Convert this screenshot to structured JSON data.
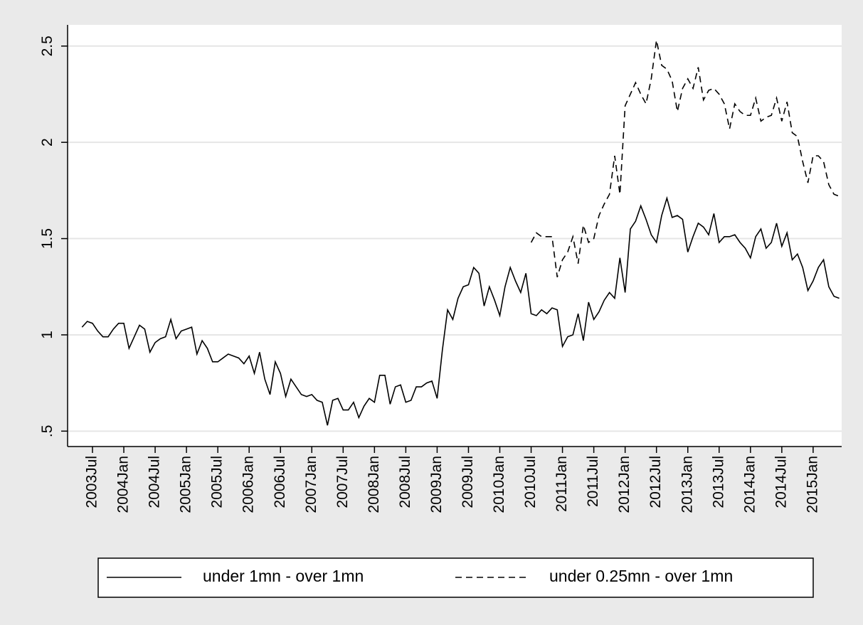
{
  "chart_data": {
    "type": "line",
    "categories": [
      null,
      null,
      "2003Jul",
      null,
      null,
      null,
      null,
      null,
      "2004Jan",
      null,
      null,
      null,
      null,
      null,
      "2004Jul",
      null,
      null,
      null,
      null,
      null,
      "2005Jan",
      null,
      null,
      null,
      null,
      null,
      "2005Jul",
      null,
      null,
      null,
      null,
      null,
      "2006Jan",
      null,
      null,
      null,
      null,
      null,
      "2006Jul",
      null,
      null,
      null,
      null,
      null,
      "2007Jan",
      null,
      null,
      null,
      null,
      null,
      "2007Jul",
      null,
      null,
      null,
      null,
      null,
      "2008Jan",
      null,
      null,
      null,
      null,
      null,
      "2008Jul",
      null,
      null,
      null,
      null,
      null,
      "2009Jan",
      null,
      null,
      null,
      null,
      null,
      "2009Jul",
      null,
      null,
      null,
      null,
      null,
      "2010Jan",
      null,
      null,
      null,
      null,
      null,
      "2010Jul",
      null,
      null,
      null,
      null,
      null,
      "2011Jan",
      null,
      null,
      null,
      null,
      null,
      "2011Jul",
      null,
      null,
      null,
      null,
      null,
      "2012Jan",
      null,
      null,
      null,
      null,
      null,
      "2012Jul",
      null,
      null,
      null,
      null,
      null,
      "2013Jan",
      null,
      null,
      null,
      null,
      null,
      "2013Jul",
      null,
      null,
      null,
      null,
      null,
      "2014Jan",
      null,
      null,
      null,
      null,
      null,
      "2014Jul",
      null,
      null,
      null,
      null,
      null,
      "2015Jan",
      null,
      null,
      null,
      null,
      null
    ],
    "series": [
      {
        "name": "under 1mn - over 1mn",
        "color": "#000000",
        "dash": "solid",
        "values": [
          1.04,
          1.07,
          1.06,
          1.02,
          0.99,
          0.99,
          1.03,
          1.06,
          1.06,
          0.93,
          0.99,
          1.05,
          1.03,
          0.91,
          0.96,
          0.98,
          0.99,
          1.08,
          0.98,
          1.02,
          1.03,
          1.04,
          0.9,
          0.97,
          0.93,
          0.86,
          0.86,
          0.88,
          0.9,
          0.89,
          0.88,
          0.85,
          0.89,
          0.8,
          0.91,
          0.77,
          0.69,
          0.86,
          0.8,
          0.68,
          0.77,
          0.73,
          0.69,
          0.68,
          0.69,
          0.66,
          0.65,
          0.53,
          0.66,
          0.67,
          0.61,
          0.61,
          0.65,
          0.57,
          0.63,
          0.67,
          0.65,
          0.79,
          0.79,
          0.64,
          0.73,
          0.74,
          0.65,
          0.66,
          0.73,
          0.73,
          0.75,
          0.76,
          0.67,
          0.92,
          1.13,
          1.08,
          1.19,
          1.25,
          1.26,
          1.35,
          1.32,
          1.15,
          1.25,
          1.18,
          1.1,
          1.25,
          1.35,
          1.28,
          1.22,
          1.32,
          1.11,
          1.1,
          1.13,
          1.11,
          1.14,
          1.13,
          0.94,
          0.99,
          1.0,
          1.11,
          0.97,
          1.17,
          1.08,
          1.12,
          1.18,
          1.22,
          1.19,
          1.4,
          1.22,
          1.55,
          1.59,
          1.67,
          1.6,
          1.52,
          1.48,
          1.62,
          1.71,
          1.61,
          1.62,
          1.6,
          1.43,
          1.51,
          1.58,
          1.56,
          1.52,
          1.63,
          1.48,
          1.51,
          1.51,
          1.52,
          1.48,
          1.45,
          1.4,
          1.51,
          1.55,
          1.45,
          1.48,
          1.58,
          1.46,
          1.53,
          1.39,
          1.42,
          1.35,
          1.23,
          1.28,
          1.35,
          1.39,
          1.25,
          1.2,
          1.19
        ]
      },
      {
        "name": "under 0.25mn - over 1mn",
        "color": "#000000",
        "dash": "dashed",
        "values": [
          null,
          null,
          null,
          null,
          null,
          null,
          null,
          null,
          null,
          null,
          null,
          null,
          null,
          null,
          null,
          null,
          null,
          null,
          null,
          null,
          null,
          null,
          null,
          null,
          null,
          null,
          null,
          null,
          null,
          null,
          null,
          null,
          null,
          null,
          null,
          null,
          null,
          null,
          null,
          null,
          null,
          null,
          null,
          null,
          null,
          null,
          null,
          null,
          null,
          null,
          null,
          null,
          null,
          null,
          null,
          null,
          null,
          null,
          null,
          null,
          null,
          null,
          null,
          null,
          null,
          null,
          null,
          null,
          null,
          null,
          null,
          null,
          null,
          null,
          null,
          null,
          null,
          null,
          null,
          null,
          null,
          null,
          null,
          null,
          null,
          null,
          1.48,
          1.53,
          1.51,
          1.51,
          1.51,
          1.3,
          1.39,
          1.43,
          1.51,
          1.37,
          1.57,
          1.48,
          1.5,
          1.62,
          1.68,
          1.73,
          1.93,
          1.73,
          2.19,
          2.25,
          2.31,
          2.25,
          2.2,
          2.33,
          2.53,
          2.4,
          2.38,
          2.32,
          2.16,
          2.28,
          2.33,
          2.28,
          2.39,
          2.22,
          2.27,
          2.28,
          2.25,
          2.2,
          2.07,
          2.2,
          2.16,
          2.14,
          2.14,
          2.23,
          2.11,
          2.13,
          2.14,
          2.23,
          2.11,
          2.21,
          2.05,
          2.03,
          1.9,
          1.79,
          1.93,
          1.93,
          1.9,
          1.78,
          1.73,
          1.72
        ]
      }
    ],
    "ylim": [
      0.42,
      2.61
    ],
    "yticks": [
      {
        "value": 0.5,
        "label": ".5"
      },
      1,
      1.5,
      2,
      2.5
    ],
    "grid": true,
    "legend": "bottom"
  }
}
